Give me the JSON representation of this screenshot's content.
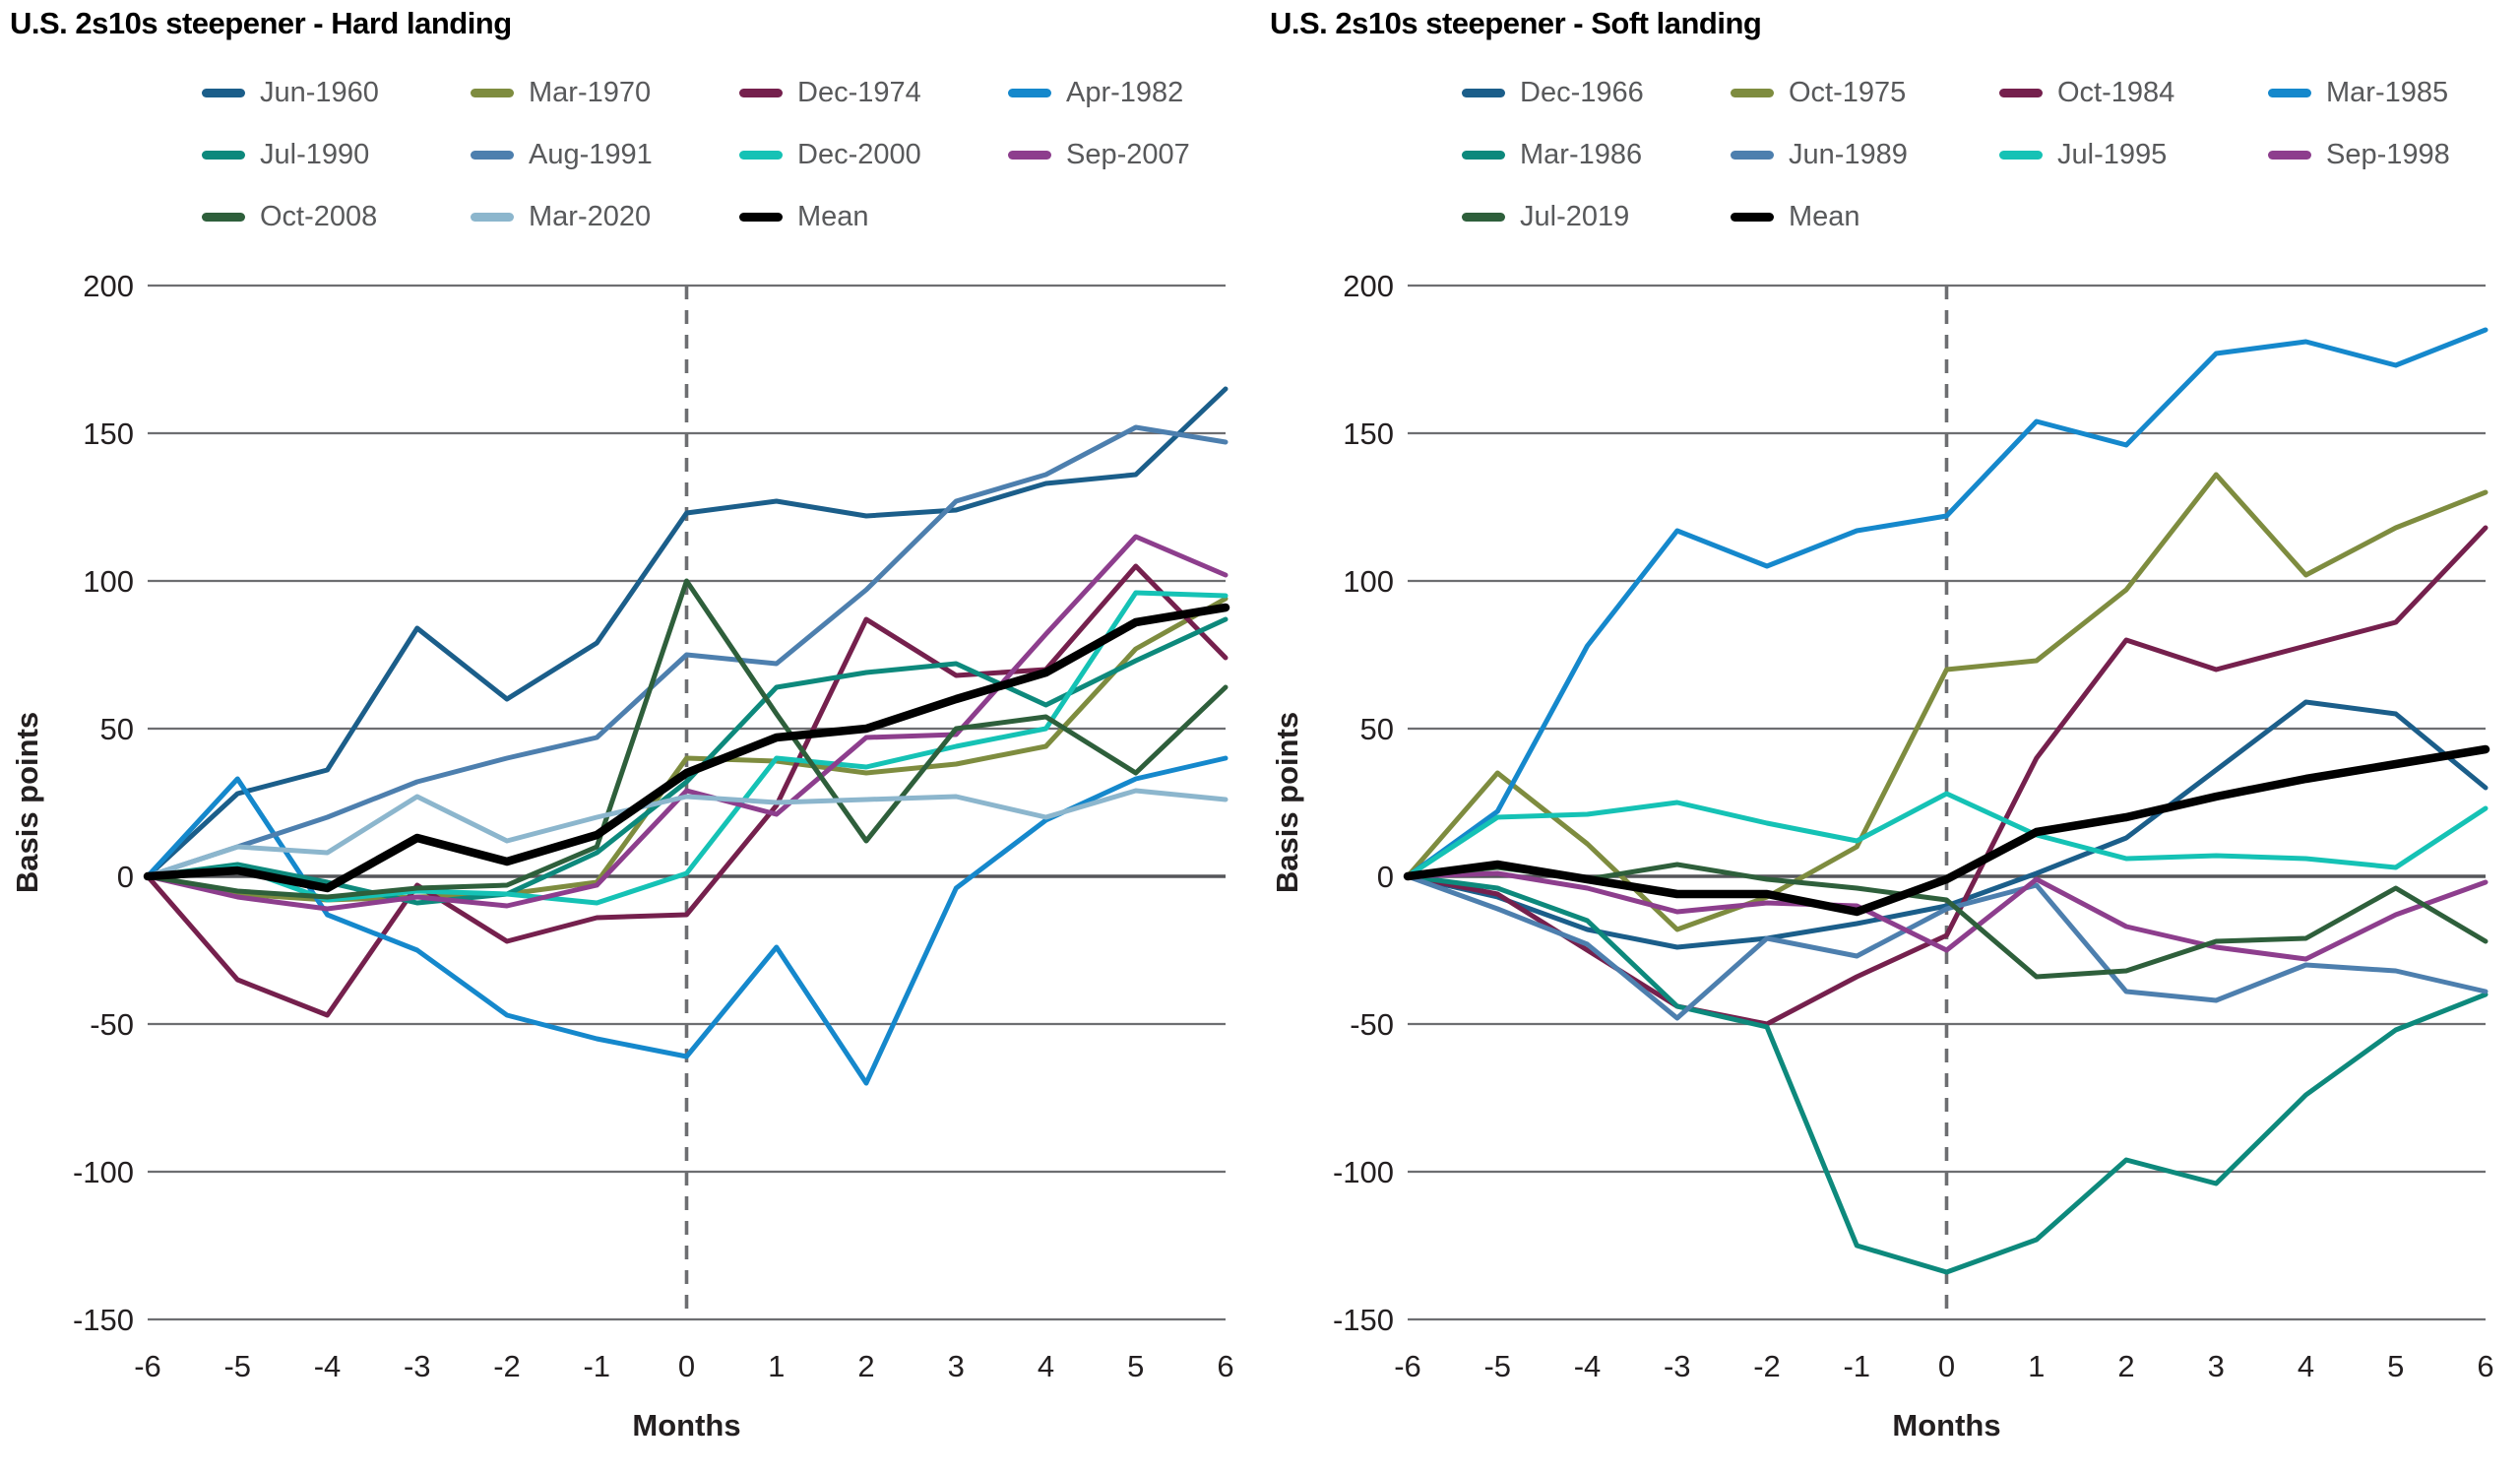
{
  "style": {
    "grid_color": "#6d6e71",
    "zero_line_color": "#55565a",
    "event_line_color": "#6d6e71",
    "tick_label_color": "#231f20",
    "legend_text_color": "#58595b",
    "background": "#ffffff",
    "mean_line_color": "#000000"
  },
  "chart_data": [
    {
      "type": "line",
      "title": "U.S. 2s10s steepener - Hard landing",
      "xlabel": "Months",
      "ylabel": "Basis points",
      "x": [
        -6,
        -5,
        -4,
        -3,
        -2,
        -1,
        0,
        1,
        2,
        3,
        4,
        5,
        6
      ],
      "ylim": [
        -150,
        200
      ],
      "yticks": [
        200,
        150,
        100,
        50,
        0,
        -50,
        -100,
        -150
      ],
      "grid": true,
      "event_line_x": 0,
      "legend_position": "top",
      "legend_columns": 4,
      "series": [
        {
          "name": "Jun-1960",
          "color": "#1b5e8a",
          "values": [
            0,
            28,
            36,
            84,
            60,
            79,
            123,
            127,
            122,
            124,
            133,
            136,
            165
          ]
        },
        {
          "name": "Mar-1970",
          "color": "#7e8c3f",
          "values": [
            0,
            -6,
            -8,
            -7,
            -6,
            -2,
            40,
            39,
            35,
            38,
            44,
            77,
            94
          ]
        },
        {
          "name": "Dec-1974",
          "color": "#75204d",
          "values": [
            0,
            -35,
            -47,
            -3,
            -22,
            -14,
            -13,
            24,
            87,
            68,
            70,
            105,
            74
          ]
        },
        {
          "name": "Apr-1982",
          "color": "#1588cc",
          "values": [
            0,
            33,
            -13,
            -25,
            -47,
            -55,
            -61,
            -24,
            -70,
            -4,
            19,
            33,
            40
          ]
        },
        {
          "name": "Jul-1990",
          "color": "#0d897c",
          "values": [
            0,
            4,
            -2,
            -9,
            -6,
            8,
            32,
            64,
            69,
            72,
            58,
            73,
            87
          ]
        },
        {
          "name": "Aug-1991",
          "color": "#4d7fae",
          "values": [
            0,
            10,
            20,
            32,
            40,
            47,
            75,
            72,
            97,
            127,
            136,
            152,
            147
          ]
        },
        {
          "name": "Dec-2000",
          "color": "#15c2b5",
          "values": [
            0,
            3,
            -8,
            -5,
            -6,
            -9,
            1,
            40,
            37,
            44,
            50,
            96,
            95
          ]
        },
        {
          "name": "Sep-2007",
          "color": "#8d3e8d",
          "values": [
            0,
            -7,
            -11,
            -7,
            -10,
            -3,
            29,
            21,
            47,
            48,
            82,
            115,
            102
          ]
        },
        {
          "name": "Oct-2008",
          "color": "#2e5f3b",
          "values": [
            0,
            -5,
            -7,
            -4,
            -3,
            10,
            100,
            55,
            12,
            50,
            54,
            35,
            64
          ]
        },
        {
          "name": "Mar-2020",
          "color": "#8cb6cd",
          "values": [
            0,
            10,
            8,
            27,
            12,
            20,
            27,
            25,
            26,
            27,
            20,
            29,
            26
          ]
        },
        {
          "name": "Mean",
          "color": "#000000",
          "emphasis": true,
          "values": [
            0,
            2,
            -4,
            13,
            5,
            14,
            35,
            47,
            50,
            60,
            69,
            86,
            91
          ]
        }
      ]
    },
    {
      "type": "line",
      "title": "U.S. 2s10s steepener - Soft landing",
      "xlabel": "Months",
      "ylabel": "Basis points",
      "x": [
        -6,
        -5,
        -4,
        -3,
        -2,
        -1,
        0,
        1,
        2,
        3,
        4,
        5,
        6
      ],
      "ylim": [
        -150,
        200
      ],
      "yticks": [
        200,
        150,
        100,
        50,
        0,
        -50,
        -100,
        -150
      ],
      "grid": true,
      "event_line_x": 0,
      "legend_position": "top",
      "legend_columns": 4,
      "series": [
        {
          "name": "Dec-1966",
          "color": "#1b5e8a",
          "values": [
            0,
            -7,
            -18,
            -24,
            -21,
            -16,
            -10,
            1,
            13,
            36,
            59,
            55,
            30
          ]
        },
        {
          "name": "Oct-1975",
          "color": "#7e8c3f",
          "values": [
            0,
            35,
            11,
            -18,
            -7,
            10,
            70,
            73,
            97,
            136,
            102,
            118,
            130
          ]
        },
        {
          "name": "Oct-1984",
          "color": "#75204d",
          "values": [
            0,
            -6,
            -25,
            -44,
            -50,
            -34,
            -20,
            40,
            80,
            70,
            78,
            86,
            118
          ]
        },
        {
          "name": "Mar-1985",
          "color": "#1588cc",
          "values": [
            0,
            22,
            78,
            117,
            105,
            117,
            122,
            154,
            146,
            177,
            181,
            173,
            185
          ]
        },
        {
          "name": "Mar-1986",
          "color": "#0d897c",
          "values": [
            0,
            -4,
            -15,
            -44,
            -51,
            -125,
            -134,
            -123,
            -96,
            -104,
            -74,
            -52,
            -40
          ]
        },
        {
          "name": "Jun-1989",
          "color": "#4d7fae",
          "values": [
            0,
            -11,
            -23,
            -48,
            -21,
            -27,
            -11,
            -3,
            -39,
            -42,
            -30,
            -32,
            -39
          ]
        },
        {
          "name": "Jul-1995",
          "color": "#15c2b5",
          "values": [
            0,
            20,
            21,
            25,
            18,
            12,
            28,
            14,
            6,
            7,
            6,
            3,
            23
          ]
        },
        {
          "name": "Sep-1998",
          "color": "#8d3e8d",
          "values": [
            0,
            1,
            -4,
            -12,
            -9,
            -10,
            -25,
            -1,
            -17,
            -24,
            -28,
            -13,
            -2
          ]
        },
        {
          "name": "Jul-2019",
          "color": "#2e5f3b",
          "values": [
            0,
            3,
            -1,
            4,
            -1,
            -4,
            -8,
            -34,
            -32,
            -22,
            -21,
            -4,
            -22
          ]
        },
        {
          "name": "Mean",
          "color": "#000000",
          "emphasis": true,
          "values": [
            0,
            4,
            -1,
            -6,
            -6,
            -12,
            -1,
            15,
            20,
            27,
            33,
            38,
            43
          ]
        }
      ]
    }
  ]
}
